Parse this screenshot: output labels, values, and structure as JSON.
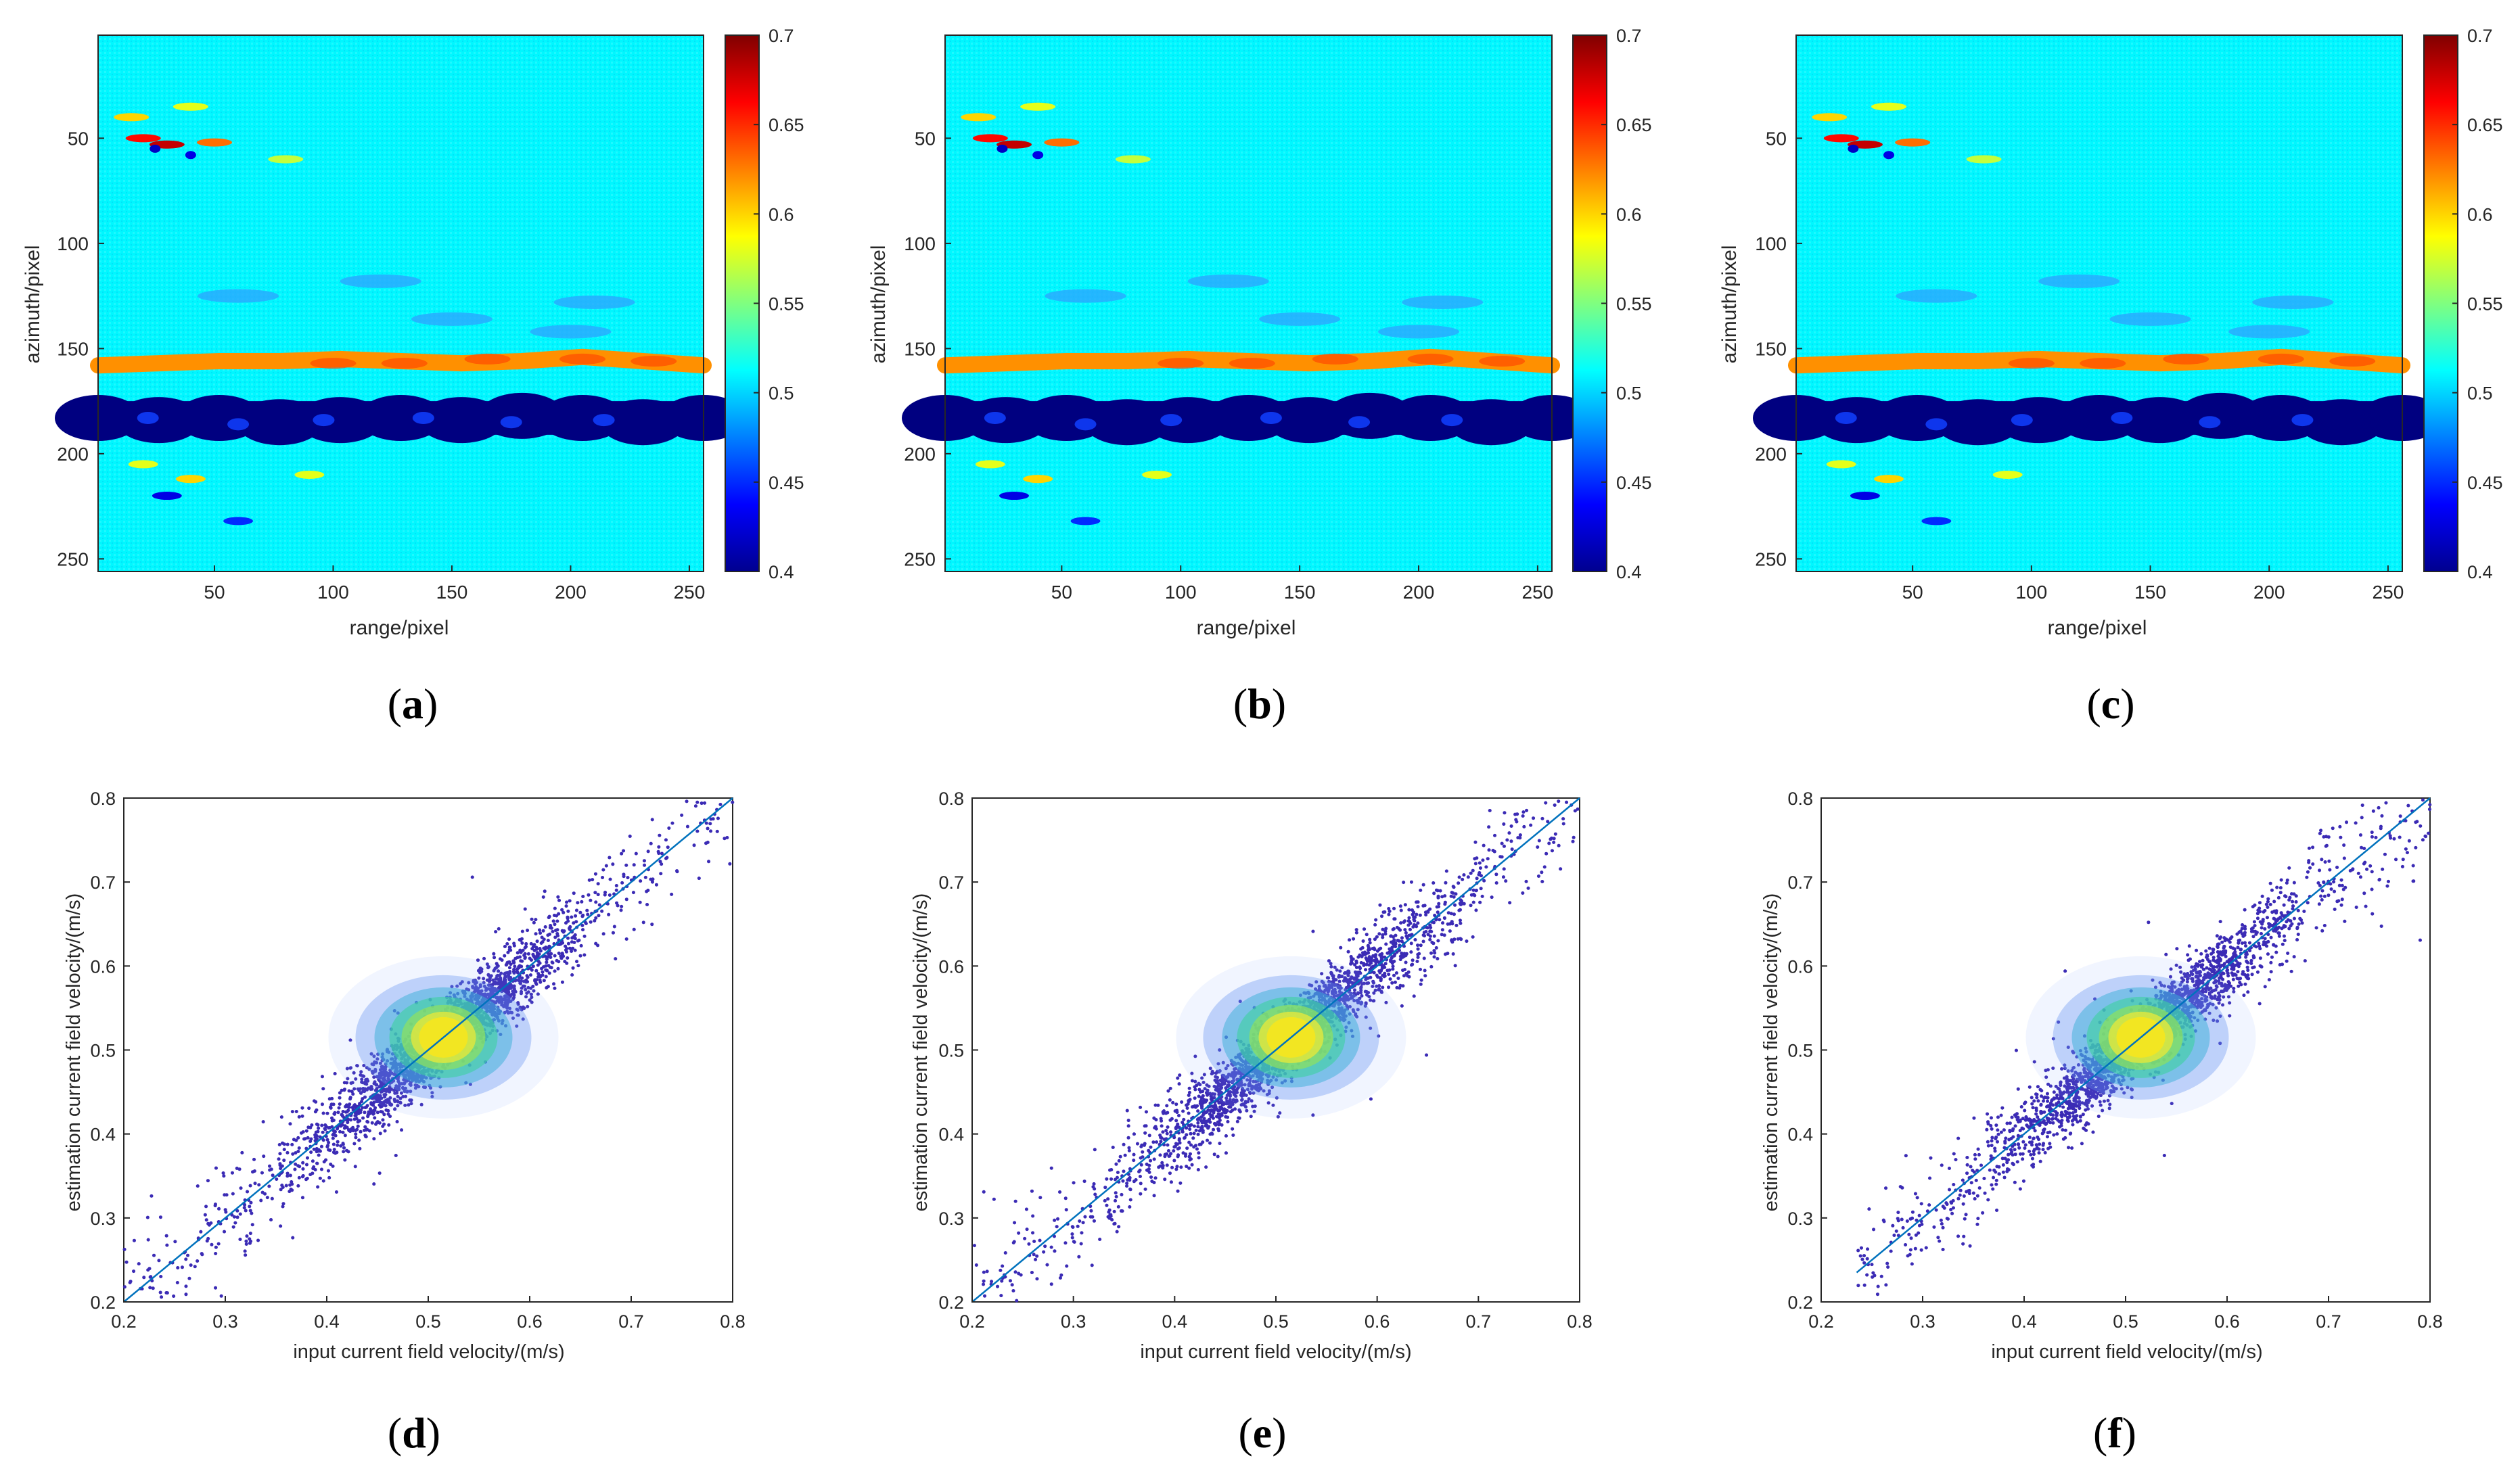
{
  "figure": {
    "colormap": "jet",
    "panel_letters": [
      "a",
      "b",
      "c",
      "d",
      "e",
      "f"
    ]
  },
  "chart_data": [
    {
      "panel": "a",
      "type": "heatmap",
      "xlabel": "range/pixel",
      "ylabel": "azimuth/pixel",
      "xticks": [
        50,
        100,
        150,
        200,
        250
      ],
      "yticks": [
        50,
        100,
        150,
        200,
        250
      ],
      "xlim": [
        1,
        256
      ],
      "ylim": [
        1,
        256
      ],
      "colorbar": {
        "range": [
          0.4,
          0.7
        ],
        "ticks": [
          "0.7",
          "0.65",
          "0.6",
          "0.55",
          "0.5",
          "0.45",
          "0.4"
        ]
      },
      "features": [
        {
          "label": "background current field",
          "value": 0.51
        },
        {
          "label": "high-velocity band near azimuth 160",
          "value": 0.62
        },
        {
          "label": "low-velocity band near azimuth 185",
          "value": 0.4
        }
      ]
    },
    {
      "panel": "b",
      "type": "heatmap",
      "xlabel": "range/pixel",
      "ylabel": "azimuth/pixel",
      "xticks": [
        50,
        100,
        150,
        200,
        250
      ],
      "yticks": [
        50,
        100,
        150,
        200,
        250
      ],
      "xlim": [
        1,
        256
      ],
      "ylim": [
        1,
        256
      ],
      "colorbar": {
        "range": [
          0.4,
          0.7
        ],
        "ticks": [
          "0.7",
          "0.65",
          "0.6",
          "0.55",
          "0.5",
          "0.45",
          "0.4"
        ]
      },
      "features": [
        {
          "label": "background current field",
          "value": 0.51
        },
        {
          "label": "high-velocity band near azimuth 160",
          "value": 0.62
        },
        {
          "label": "low-velocity band near azimuth 185",
          "value": 0.4
        }
      ]
    },
    {
      "panel": "c",
      "type": "heatmap",
      "xlabel": "range/pixel",
      "ylabel": "azimuth/pixel",
      "xticks": [
        50,
        100,
        150,
        200,
        250
      ],
      "yticks": [
        50,
        100,
        150,
        200,
        250
      ],
      "xlim": [
        1,
        256
      ],
      "ylim": [
        1,
        256
      ],
      "colorbar": {
        "range": [
          0.4,
          0.7
        ],
        "ticks": [
          "0.7",
          "0.65",
          "0.6",
          "0.55",
          "0.5",
          "0.45",
          "0.4"
        ]
      },
      "features": [
        {
          "label": "background current field",
          "value": 0.51
        },
        {
          "label": "high-velocity band near azimuth 160",
          "value": 0.62
        },
        {
          "label": "low-velocity band near azimuth 185",
          "value": 0.4
        }
      ]
    },
    {
      "panel": "d",
      "type": "scatter",
      "xlabel": "input current field velocity/(m/s)",
      "ylabel": "estimation current field velocity/(m/s)",
      "xlim": [
        0.2,
        0.8
      ],
      "ylim": [
        0.2,
        0.8
      ],
      "xticks": [
        "0.2",
        "0.3",
        "0.4",
        "0.5",
        "0.6",
        "0.7",
        "0.8"
      ],
      "yticks": [
        "0.2",
        "0.3",
        "0.4",
        "0.5",
        "0.6",
        "0.7",
        "0.8"
      ],
      "reference_line": {
        "x": [
          0.2,
          0.8
        ],
        "y": [
          0.2,
          0.8
        ]
      },
      "density_center": [
        0.515,
        0.515
      ],
      "min_input": 0.2
    },
    {
      "panel": "e",
      "type": "scatter",
      "xlabel": "input current field velocity/(m/s)",
      "ylabel": "estimation current field velocity/(m/s)",
      "xlim": [
        0.2,
        0.8
      ],
      "ylim": [
        0.2,
        0.8
      ],
      "xticks": [
        "0.2",
        "0.3",
        "0.4",
        "0.5",
        "0.6",
        "0.7",
        "0.8"
      ],
      "yticks": [
        "0.2",
        "0.3",
        "0.4",
        "0.5",
        "0.6",
        "0.7",
        "0.8"
      ],
      "reference_line": {
        "x": [
          0.2,
          0.8
        ],
        "y": [
          0.2,
          0.8
        ]
      },
      "density_center": [
        0.515,
        0.515
      ],
      "min_input": 0.2
    },
    {
      "panel": "f",
      "type": "scatter",
      "xlabel": "input current field velocity/(m/s)",
      "ylabel": "estimation current field velocity/(m/s)",
      "xlim": [
        0.2,
        0.8
      ],
      "ylim": [
        0.2,
        0.8
      ],
      "xticks": [
        "0.2",
        "0.3",
        "0.4",
        "0.5",
        "0.6",
        "0.7",
        "0.8"
      ],
      "yticks": [
        "0.2",
        "0.3",
        "0.4",
        "0.5",
        "0.6",
        "0.7",
        "0.8"
      ],
      "reference_line": {
        "x": [
          0.235,
          0.8
        ],
        "y": [
          0.235,
          0.8
        ]
      },
      "density_center": [
        0.515,
        0.515
      ],
      "min_input": 0.235
    }
  ]
}
